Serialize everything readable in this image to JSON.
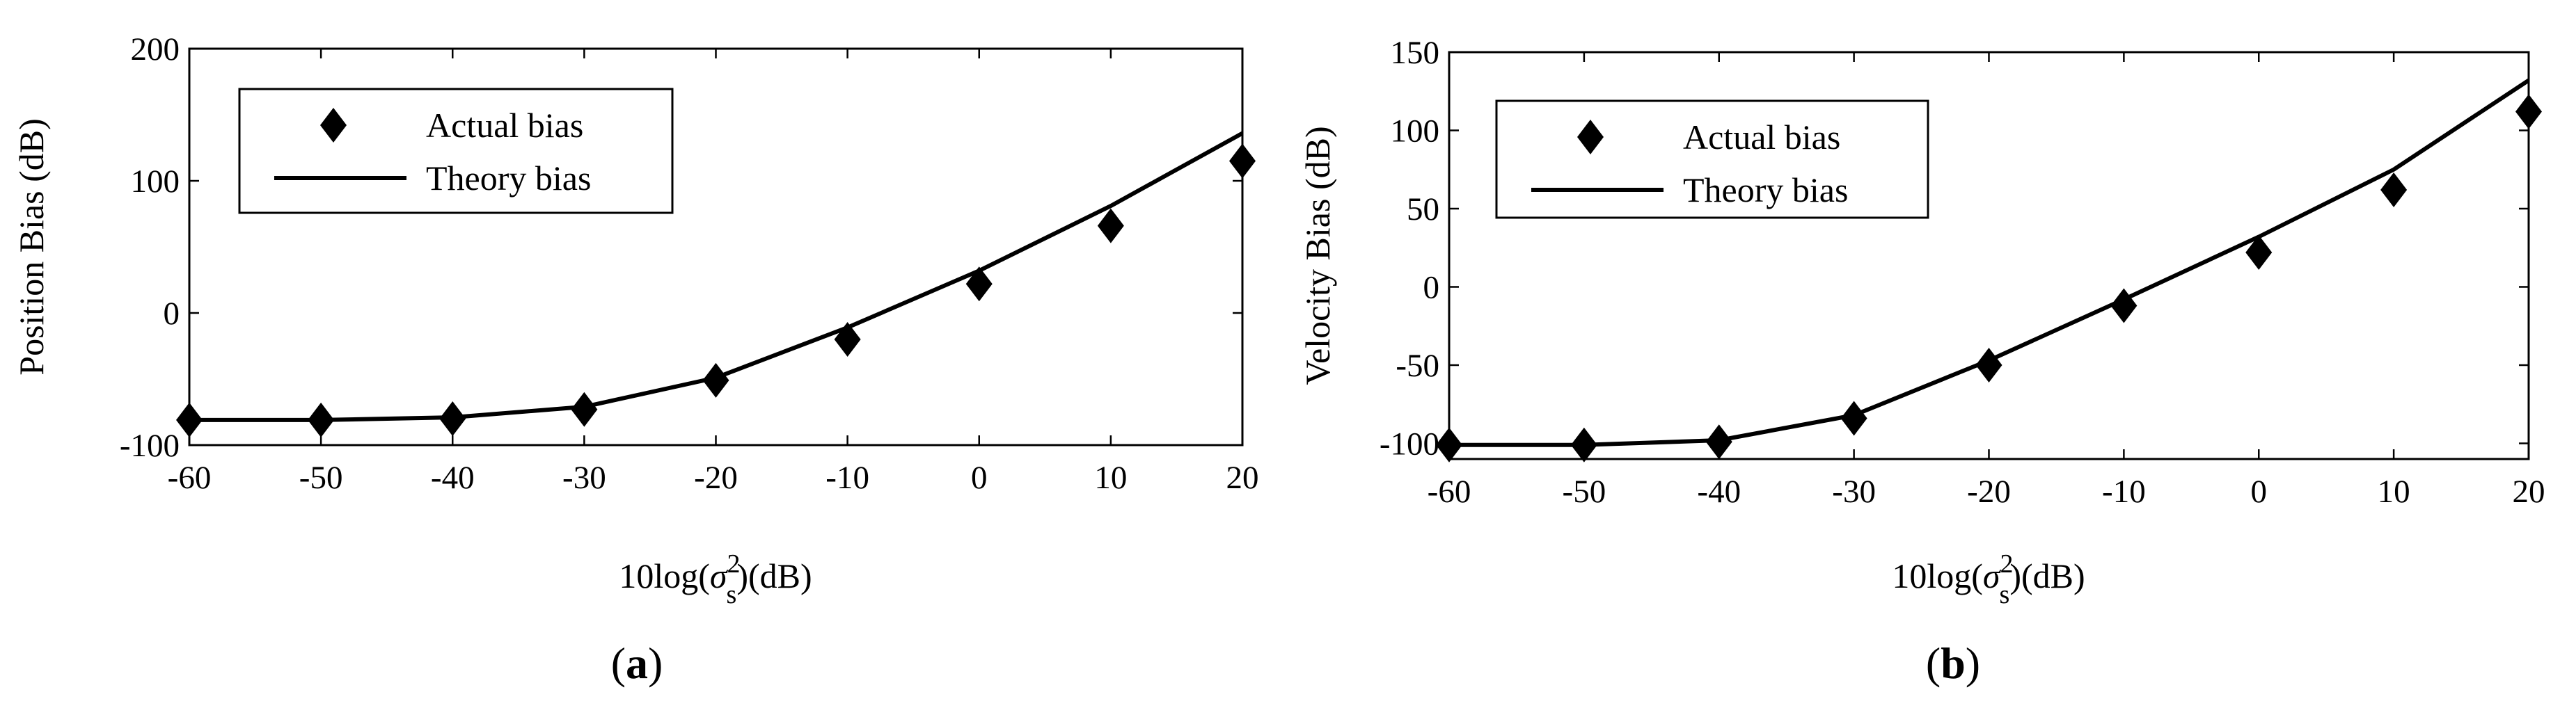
{
  "chart_data": [
    {
      "type": "line",
      "panel_label": "a",
      "xlabel_prefix": "10log(",
      "xlabel_symbol": "σ",
      "xlabel_subscript": "s",
      "xlabel_superscript": "2",
      "xlabel_suffix": ")(dB)",
      "ylabel": "Position Bias (dB)",
      "xlim": [
        -60,
        20
      ],
      "ylim": [
        -100,
        200
      ],
      "xticks": [
        -60,
        -50,
        -40,
        -30,
        -20,
        -10,
        0,
        10,
        20
      ],
      "yticks": [
        -100,
        0,
        100,
        200
      ],
      "legend_position": "top-left",
      "grid": false,
      "series": [
        {
          "name": "Actual bias",
          "kind": "marker",
          "marker": "diamond",
          "x": [
            -60,
            -50,
            -40,
            -30,
            -20,
            -10,
            0,
            10,
            20
          ],
          "y": [
            -81,
            -81,
            -80,
            -73,
            -51,
            -20,
            22,
            66,
            115
          ]
        },
        {
          "name": "Theory bias",
          "kind": "line",
          "x": [
            -60,
            -50,
            -40,
            -30,
            -20,
            -10,
            0,
            10,
            20
          ],
          "y": [
            -81,
            -81,
            -79,
            -71,
            -49,
            -11,
            32,
            81,
            136
          ]
        }
      ]
    },
    {
      "type": "line",
      "panel_label": "b",
      "xlabel_prefix": "10log(",
      "xlabel_symbol": "σ",
      "xlabel_subscript": "s",
      "xlabel_superscript": "2",
      "xlabel_suffix": ")(dB)",
      "ylabel": "Velocity Bias (dB)",
      "xlim": [
        -60,
        20
      ],
      "ylim": [
        -110,
        150
      ],
      "xticks": [
        -60,
        -50,
        -40,
        -30,
        -20,
        -10,
        0,
        10,
        20
      ],
      "yticks": [
        -100,
        -50,
        0,
        50,
        100,
        150
      ],
      "legend_position": "top-left",
      "grid": false,
      "series": [
        {
          "name": "Actual bias",
          "kind": "marker",
          "marker": "diamond",
          "x": [
            -60,
            -50,
            -40,
            -30,
            -20,
            -10,
            0,
            10,
            20
          ],
          "y": [
            -101,
            -101,
            -99,
            -84,
            -50,
            -12,
            22,
            62,
            112
          ]
        },
        {
          "name": "Theory bias",
          "kind": "line",
          "x": [
            -60,
            -50,
            -40,
            -30,
            -20,
            -10,
            0,
            10,
            20
          ],
          "y": [
            -101,
            -101,
            -98,
            -82,
            -47,
            -8,
            32,
            75,
            132
          ]
        }
      ]
    }
  ]
}
